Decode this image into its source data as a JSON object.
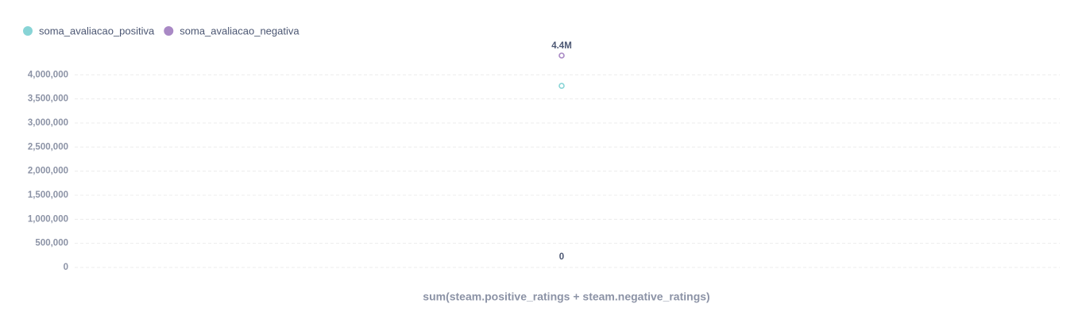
{
  "chart_data": {
    "type": "scatter",
    "x_label": "sum(steam.positive_ratings + steam.negative_ratings)",
    "categories": [
      null
    ],
    "series": [
      {
        "name": "soma_avaliacao_positiva",
        "color": "#88d4d6",
        "values": [
          3770000
        ]
      },
      {
        "name": "soma_avaliacao_negativa",
        "color": "#a989c5",
        "values": [
          4400000
        ],
        "value_labels": [
          "4.4M"
        ]
      }
    ],
    "annotations": [
      "0"
    ],
    "ylim": [
      0,
      4400000
    ],
    "yticks": [
      0,
      {
        "value": 500000,
        "label": "500,000"
      },
      {
        "value": 1000000,
        "label": "1,000,000"
      },
      {
        "value": 1500000,
        "label": "1,500,000"
      },
      {
        "value": 2000000,
        "label": "2,000,000"
      },
      {
        "value": 2500000,
        "label": "2,500,000"
      },
      {
        "value": 3000000,
        "label": "3,000,000"
      },
      {
        "value": 3500000,
        "label": "3,500,000"
      },
      {
        "value": 4000000,
        "label": "4,000,000"
      }
    ],
    "grid": true
  }
}
